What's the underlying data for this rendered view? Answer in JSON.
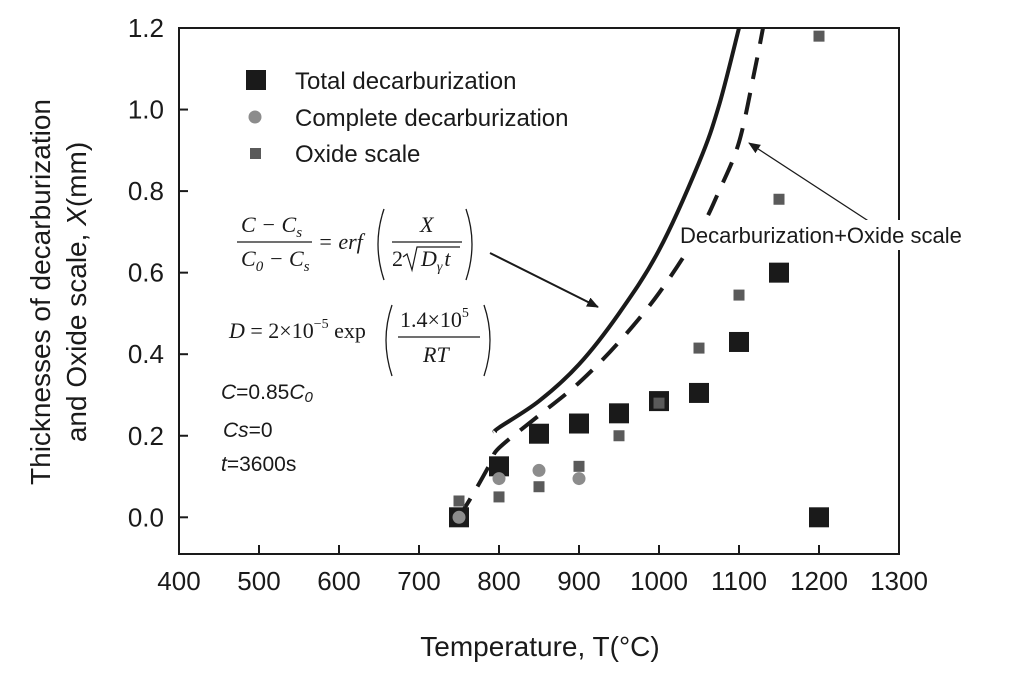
{
  "chart_data": {
    "type": "scatter",
    "xlabel": "Temperature, T(°C)",
    "ylabel_line1": "Thicknesses of  decarburization",
    "ylabel_line2_prefix": "and Oxide scale, ",
    "ylabel_line2_var": "X",
    "ylabel_line2_suffix": "(mm)",
    "xlim": [
      400,
      1300
    ],
    "ylim": [
      -0.09,
      1.2
    ],
    "x_ticks": [
      400,
      500,
      600,
      700,
      800,
      900,
      1000,
      1100,
      1200,
      1300
    ],
    "y_ticks": [
      0.0,
      0.2,
      0.4,
      0.6,
      0.8,
      1.0,
      1.2
    ],
    "x_tick_labels": [
      "400",
      "500",
      "600",
      "700",
      "800",
      "900",
      "1000",
      "1100",
      "1200",
      "1300"
    ],
    "y_tick_labels": [
      "0.0",
      "0.2",
      "0.4",
      "0.6",
      "0.8",
      "1.0",
      "1.2"
    ],
    "grid": false,
    "legend_position": "top-left",
    "series": [
      {
        "name": "Total decarburization",
        "marker": "large-square",
        "color": "#1a1a1a",
        "x": [
          750,
          800,
          850,
          900,
          950,
          1000,
          1050,
          1100,
          1150,
          1200
        ],
        "y": [
          0.0,
          0.125,
          0.205,
          0.23,
          0.255,
          0.285,
          0.305,
          0.43,
          0.6,
          0.0
        ]
      },
      {
        "name": "Complete decarburization",
        "marker": "circle",
        "color": "#8c8c8c",
        "x": [
          750,
          800,
          850,
          900
        ],
        "y": [
          0.0,
          0.095,
          0.115,
          0.095
        ]
      },
      {
        "name": "Oxide scale",
        "marker": "small-square",
        "color": "#5a5a5a",
        "x": [
          750,
          800,
          850,
          900,
          950,
          1000,
          1050,
          1100,
          1150,
          1200
        ],
        "y": [
          0.04,
          0.05,
          0.075,
          0.125,
          0.2,
          0.28,
          0.415,
          0.545,
          0.78,
          1.18
        ]
      }
    ],
    "curves": [
      {
        "style": "solid",
        "x": [
          795,
          800,
          850,
          900,
          950,
          1000,
          1050,
          1075,
          1100
        ],
        "y": [
          0.21,
          0.22,
          0.285,
          0.375,
          0.5,
          0.655,
          0.87,
          1.01,
          1.2
        ]
      },
      {
        "style": "dashed",
        "x": [
          750,
          770,
          790,
          800,
          850,
          900,
          950,
          1000,
          1050,
          1075,
          1100,
          1120,
          1130
        ],
        "y": [
          0.0,
          0.065,
          0.135,
          0.17,
          0.25,
          0.33,
          0.43,
          0.55,
          0.7,
          0.8,
          0.92,
          1.1,
          1.2
        ]
      }
    ],
    "annotations": {
      "decarb_oxide_label": "Decarburization+Oxide scale",
      "param_C_var": "C",
      "param_C_eq": "=0.85",
      "param_C_sub": "C",
      "param_C_subidx": "0",
      "param_Cs_var": "Cs",
      "param_Cs_eq": "=0",
      "param_t_var": "t",
      "param_t_eq": "=3600s"
    },
    "formula1": {
      "num": "C − C",
      "num_sub": "s",
      "den": "C",
      "den_sub0": "0",
      "den_mid": " − C",
      "den_sub": "s",
      "eq": "= erf",
      "frac2_num": "X",
      "frac2_den_coef": "2",
      "frac2_den_var": "D",
      "frac2_den_sub": "γ",
      "frac2_den_t": "t"
    },
    "formula2": {
      "lhs": "D",
      "eq": " = 2×10",
      "exp": "−5",
      "fn": " exp",
      "num": "1.4×10",
      "num_exp": "5",
      "den": "RT"
    }
  }
}
